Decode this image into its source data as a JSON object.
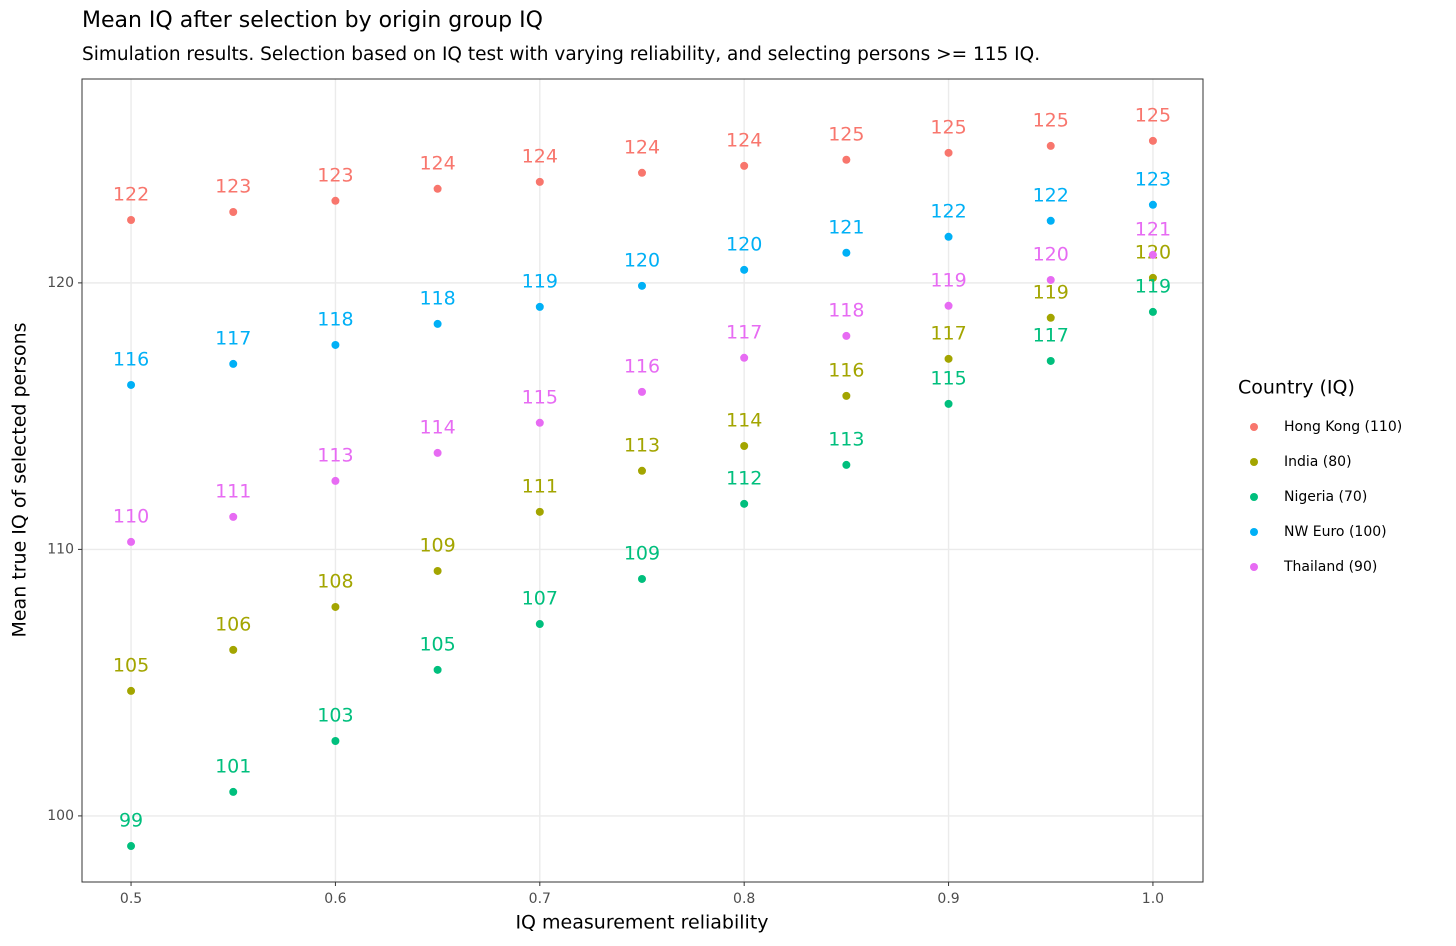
{
  "chart_data": {
    "type": "scatter",
    "title": "Mean IQ after selection by origin group IQ",
    "subtitle": "Simulation results. Selection based on IQ test with varying reliability, and selecting persons >= 115 IQ.",
    "x_label": "IQ measurement reliability",
    "y_label": "Mean true IQ of selected persons",
    "legend_title": "Country (IQ)",
    "legend_position": "right",
    "grid": true,
    "x": [
      0.5,
      0.55,
      0.6,
      0.65,
      0.7,
      0.75,
      0.8,
      0.85,
      0.9,
      0.95,
      1.0
    ],
    "xlim": [
      0.476,
      1.0245
    ],
    "xticks": [
      0.5,
      0.6,
      0.7,
      0.8,
      0.9,
      {
        "value": 1.0,
        "label": "1.0"
      }
    ],
    "ylim": [
      97.52,
      127.65
    ],
    "yticks": [
      100,
      110,
      120
    ],
    "series": [
      {
        "name": "Hong Kong (110)",
        "color": "#F8766D",
        "values": [
          122.36,
          122.66,
          123.08,
          123.53,
          123.79,
          124.13,
          124.39,
          124.62,
          124.88,
          125.14,
          125.33
        ],
        "value_labels": [
          "122",
          "123",
          "123",
          "124",
          "124",
          "124",
          "124",
          "125",
          "125",
          "125",
          "125"
        ]
      },
      {
        "name": "India (80)",
        "color": "#A3A500",
        "values": [
          104.69,
          106.23,
          107.84,
          109.19,
          111.41,
          112.95,
          113.88,
          115.76,
          117.15,
          118.69,
          120.19
        ],
        "value_labels": [
          "105",
          "106",
          "108",
          "109",
          "111",
          "113",
          "114",
          "116",
          "117",
          "119",
          "120"
        ]
      },
      {
        "name": "Nigeria (70)",
        "color": "#00BF7D",
        "values": [
          98.87,
          100.9,
          102.81,
          105.48,
          107.2,
          108.89,
          111.71,
          113.17,
          115.46,
          117.07,
          118.91
        ],
        "value_labels": [
          "99",
          "101",
          "103",
          "105",
          "107",
          "109",
          "112",
          "113",
          "115",
          "117",
          "119"
        ]
      },
      {
        "name": "NW Euro (100)",
        "color": "#00B0F6",
        "values": [
          116.17,
          116.96,
          117.67,
          118.46,
          119.1,
          119.89,
          120.49,
          121.13,
          121.73,
          122.33,
          122.93
        ],
        "value_labels": [
          "116",
          "117",
          "118",
          "118",
          "119",
          "120",
          "120",
          "121",
          "122",
          "122",
          "123"
        ]
      },
      {
        "name": "Thailand (90)",
        "color": "#E76BF3",
        "values": [
          110.28,
          111.22,
          112.57,
          113.62,
          114.75,
          115.91,
          117.19,
          118.01,
          119.14,
          120.11,
          121.05
        ],
        "value_labels": [
          "110",
          "111",
          "113",
          "114",
          "115",
          "116",
          "117",
          "118",
          "119",
          "120",
          "121"
        ]
      }
    ]
  }
}
